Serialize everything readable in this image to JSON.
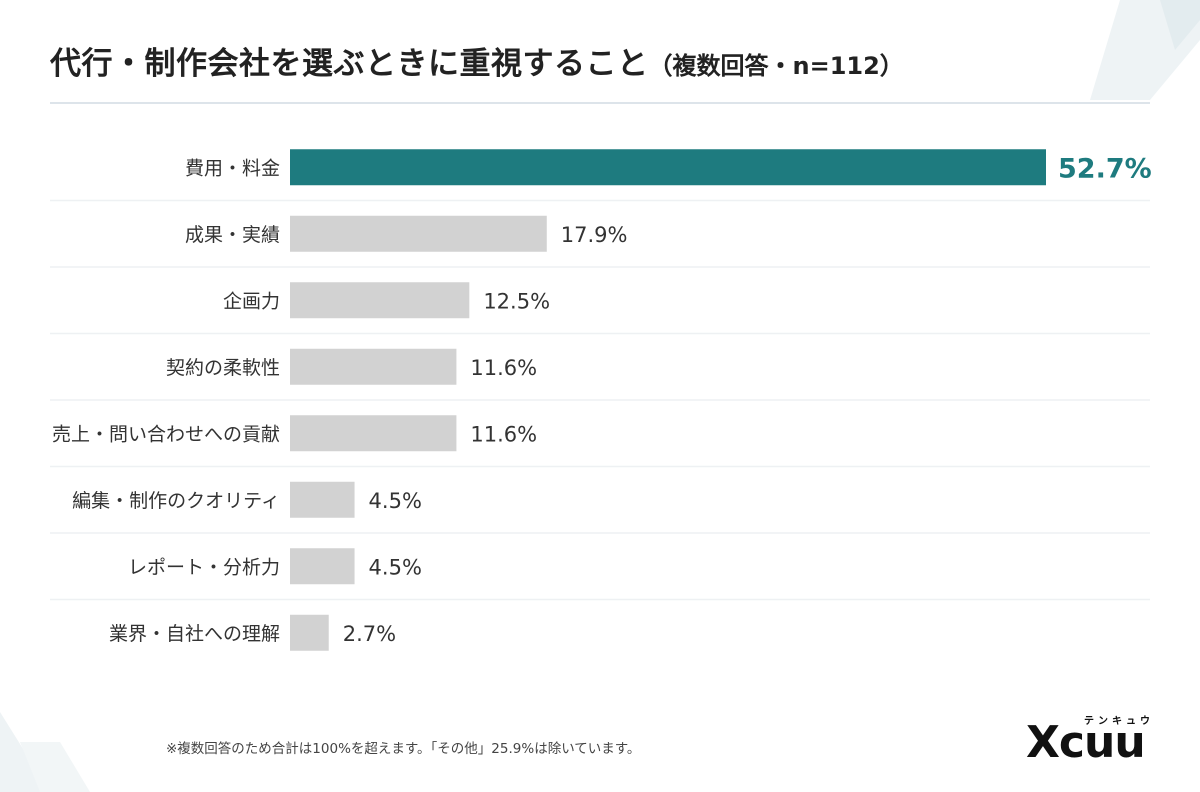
{
  "title": {
    "main": "代行・制作会社を選ぶときに重視すること",
    "sub": "（複数回答・n=112）"
  },
  "chart_data": {
    "type": "bar",
    "orientation": "horizontal",
    "categories": [
      "費用・料金",
      "成果・実績",
      "企画力",
      "契約の柔軟性",
      "売上・問い合わせへの貢献",
      "編集・制作のクオリティ",
      "レポート・分析力",
      "業界・自社への理解"
    ],
    "values": [
      52.7,
      17.9,
      12.5,
      11.6,
      11.6,
      4.5,
      4.5,
      2.7
    ],
    "value_labels": [
      "52.7%",
      "17.9%",
      "12.5%",
      "11.6%",
      "11.6%",
      "4.5%",
      "4.5%",
      "2.7%"
    ],
    "xlim": [
      0,
      52.7
    ],
    "highlight_index": 0,
    "colors": {
      "highlight": "#1e7b7f",
      "default": "#d2d2d2",
      "highlight_label": "#1e7b7f",
      "default_label": "#333333",
      "separator": "#eef1f3"
    }
  },
  "footnote": "※複数回答のため合計は100%を超えます。「その他」25.9%は除いています。",
  "logo": {
    "text": "Xcuu",
    "ruby": "テンキュウ"
  }
}
